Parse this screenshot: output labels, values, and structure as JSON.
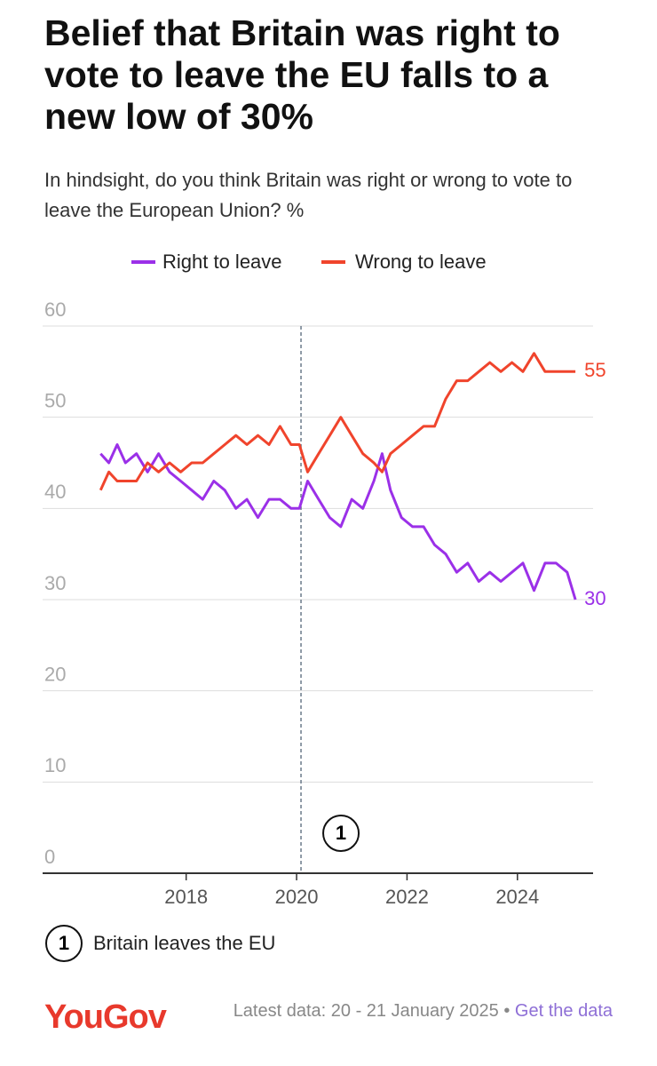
{
  "chart_data": {
    "type": "line",
    "title": "Belief that Britain was right to vote to leave the EU falls to a new low of 30%",
    "subtitle": "In hindsight, do you think Britain was right or wrong to vote to leave the European Union? %",
    "x": [
      2016.45,
      2016.6,
      2016.75,
      2016.9,
      2017.1,
      2017.3,
      2017.5,
      2017.7,
      2017.9,
      2018.1,
      2018.3,
      2018.5,
      2018.7,
      2018.9,
      2019.1,
      2019.3,
      2019.5,
      2019.7,
      2019.9,
      2020.05,
      2020.2,
      2020.4,
      2020.6,
      2020.8,
      2021.0,
      2021.2,
      2021.4,
      2021.55,
      2021.7,
      2021.9,
      2022.1,
      2022.3,
      2022.5,
      2022.7,
      2022.9,
      2023.1,
      2023.3,
      2023.5,
      2023.7,
      2023.9,
      2024.1,
      2024.3,
      2024.5,
      2024.7,
      2024.9,
      2025.05
    ],
    "series": [
      {
        "name": "Right to leave",
        "color": "#9b30e8",
        "values": [
          46,
          45,
          47,
          45,
          46,
          44,
          46,
          44,
          43,
          42,
          41,
          43,
          42,
          40,
          41,
          39,
          41,
          41,
          40,
          40,
          43,
          41,
          39,
          38,
          41,
          40,
          43,
          46,
          42,
          39,
          38,
          38,
          36,
          35,
          33,
          34,
          32,
          33,
          32,
          33,
          34,
          31,
          34,
          34,
          33,
          30
        ]
      },
      {
        "name": "Wrong to leave",
        "color": "#f0442c",
        "values": [
          42,
          44,
          43,
          43,
          43,
          45,
          44,
          45,
          44,
          45,
          45,
          46,
          47,
          48,
          47,
          48,
          47,
          49,
          47,
          47,
          44,
          46,
          48,
          50,
          48,
          46,
          45,
          44,
          46,
          47,
          48,
          49,
          49,
          52,
          54,
          54,
          55,
          56,
          55,
          56,
          55,
          57,
          55,
          55,
          55,
          55
        ]
      }
    ],
    "xlim": [
      2015.4,
      2025.37
    ],
    "xticks": [
      2018,
      2020,
      2022,
      2024
    ],
    "ylim": [
      0,
      60
    ],
    "yticks": [
      0,
      10,
      20,
      30,
      40,
      50,
      60
    ],
    "grid": true,
    "annotations": [
      {
        "x": 2020.08,
        "marker": "1",
        "label": "Britain leaves the EU"
      }
    ],
    "source": "YouGov",
    "footer": "Latest data: 20 - 21 January 2025 •",
    "footer_link": "Get the data"
  }
}
